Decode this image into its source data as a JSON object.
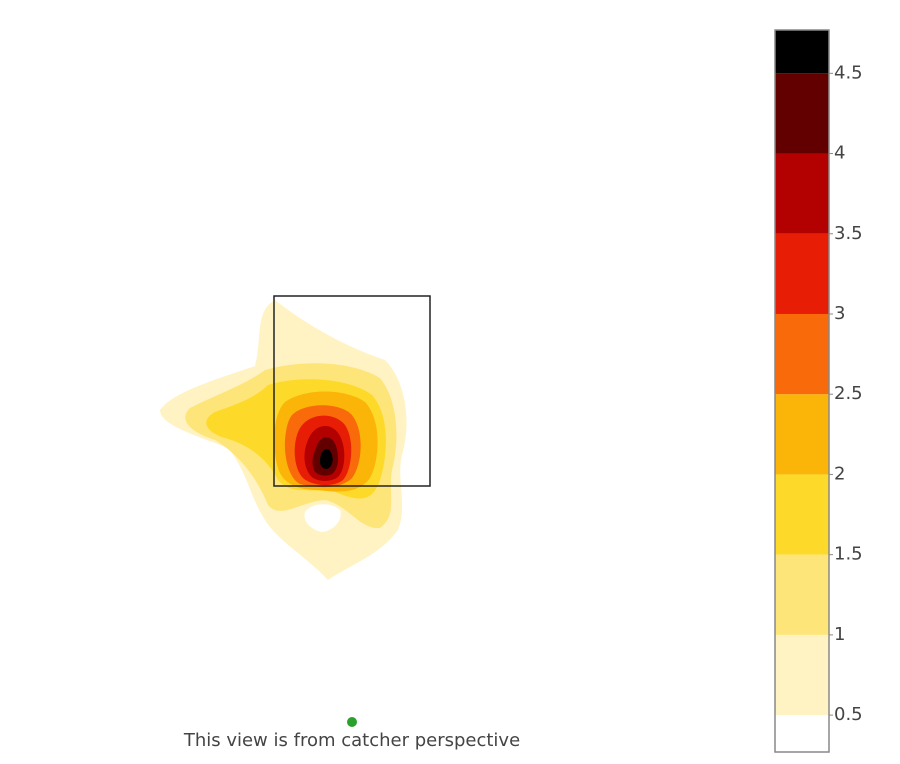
{
  "chart_data": {
    "type": "contour",
    "annotation": "This view is from catcher perspective",
    "zlim": [
      0.27,
      4.77
    ],
    "zticks": [
      0.5,
      1,
      1.5,
      2,
      2.5,
      3,
      3.5,
      4,
      4.5
    ],
    "colors": [
      "#ffffff",
      "#fff3c4",
      "#fee57a",
      "#fdd92a",
      "#fbb508",
      "#f86a0a",
      "#e81d05",
      "#b30000",
      "#620000",
      "#000000"
    ]
  }
}
